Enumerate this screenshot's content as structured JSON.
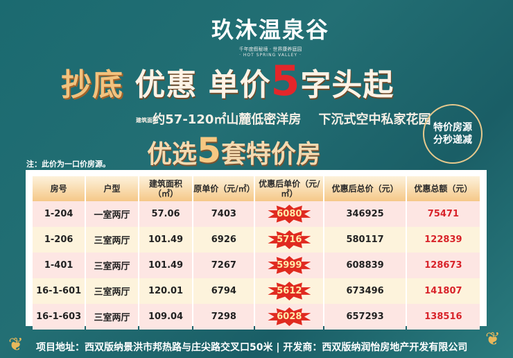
{
  "logo": {
    "name": "玖沐温泉谷",
    "tagline": "千年度假秘境 · 世界康养庭园",
    "english": "· HOT SPRING VALLEY ·"
  },
  "headline": {
    "part1": "抄底",
    "part2": "优惠 单价",
    "number": "5",
    "part3": "字头起"
  },
  "subline": {
    "label": "建筑面积",
    "text": "约57-120㎡山麓低密洋房    下沉式空中私家花园"
  },
  "pick": {
    "part1": "优选",
    "number": "5",
    "part2": "套特价房"
  },
  "stamp": {
    "line1": "特价房源",
    "line2": "分秒递减"
  },
  "note": "注：此价为一口价房源。",
  "table": {
    "headers": [
      "房号",
      "户型",
      "建筑面积（㎡）",
      "原单价（元/㎡）",
      "优惠后单价（元/㎡）",
      "优惠后总价（元）",
      "优惠总额（元）"
    ],
    "rows": [
      [
        "1-204",
        "一室两厅",
        "57.06",
        "7403",
        "6080",
        "346925",
        "75471"
      ],
      [
        "1-206",
        "三室两厅",
        "101.49",
        "6926",
        "5716",
        "580117",
        "122839"
      ],
      [
        "1-401",
        "三室两厅",
        "101.49",
        "7267",
        "5999",
        "608839",
        "128673"
      ],
      [
        "16-1-601",
        "三室两厅",
        "120.01",
        "6794",
        "5612",
        "673496",
        "141807"
      ],
      [
        "16-1-603",
        "三室两厅",
        "109.04",
        "7298",
        "6028",
        "657293",
        "138516"
      ]
    ]
  },
  "footer": {
    "address": "项目地址：西双版纳景洪市邦热路与庄尖路交叉口50米",
    "developer": "开发商：西双版纳润怡房地产开发有限公司"
  },
  "colors": {
    "background": "#1f6b70",
    "accent_red": "#e02a20",
    "gold": "#f2c27e"
  }
}
